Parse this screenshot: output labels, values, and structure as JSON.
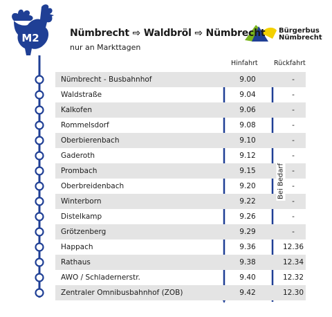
{
  "route": {
    "badge": "M2",
    "title": "Nümbrecht ⇨ Waldbröl ⇨ Nümbrecht",
    "subtitle": "nur an Markttagen"
  },
  "brand": {
    "line1": "Bürgerbus",
    "line2": "Nümbrecht"
  },
  "columns": {
    "outbound": "Hinfahrt",
    "return": "Rückfahrt"
  },
  "on_demand_note": "Bei Bedarf",
  "stops": [
    {
      "name": "Nümbrecht - Busbahnhof",
      "outbound": "9.00",
      "return": "-"
    },
    {
      "name": "Waldstraße",
      "outbound": "9.04",
      "return": "-"
    },
    {
      "name": "Kalkofen",
      "outbound": "9.06",
      "return": "-"
    },
    {
      "name": "Rommelsdorf",
      "outbound": "9.08",
      "return": "-"
    },
    {
      "name": "Oberbierenbach",
      "outbound": "9.10",
      "return": "-"
    },
    {
      "name": "Gaderoth",
      "outbound": "9.12",
      "return": "-"
    },
    {
      "name": "Prombach",
      "outbound": "9.15",
      "return": "-"
    },
    {
      "name": "Oberbreidenbach",
      "outbound": "9.20",
      "return": "-"
    },
    {
      "name": "Winterborn",
      "outbound": "9.22",
      "return": "-"
    },
    {
      "name": "Distelkamp",
      "outbound": "9.26",
      "return": "-"
    },
    {
      "name": "Grötzenberg",
      "outbound": "9.29",
      "return": "-"
    },
    {
      "name": "Happach",
      "outbound": "9.36",
      "return": "12.36"
    },
    {
      "name": "Rathaus",
      "outbound": "9.38",
      "return": "12.34"
    },
    {
      "name": "AWO / Schladernerstr.",
      "outbound": "9.40",
      "return": "12.32"
    },
    {
      "name": "Zentraler Omnibusbahnhof (ZOB)",
      "outbound": "9.42",
      "return": "12.30"
    }
  ],
  "colors": {
    "route_blue": "#1f3f95",
    "row_shade": "#e4e4e4",
    "logo_green": "#7ab51d",
    "logo_yellow": "#f3d000"
  }
}
